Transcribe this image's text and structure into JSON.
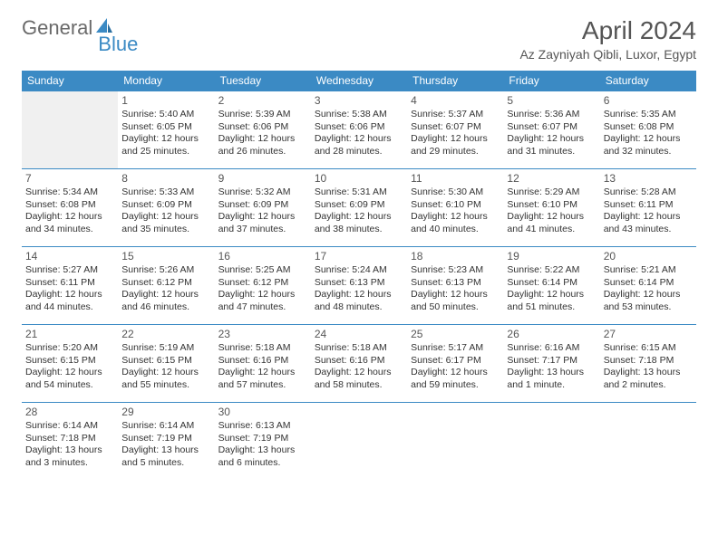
{
  "brand": {
    "part1": "General",
    "part2": "Blue"
  },
  "title": "April 2024",
  "location": "Az Zayniyah Qibli, Luxor, Egypt",
  "colors": {
    "accent": "#3b8ac4",
    "text": "#333333",
    "muted": "#6a6a6a",
    "bg": "#ffffff",
    "empty": "#f0f0f0"
  },
  "day_headers": [
    "Sunday",
    "Monday",
    "Tuesday",
    "Wednesday",
    "Thursday",
    "Friday",
    "Saturday"
  ],
  "weeks": [
    [
      {
        "day": "",
        "lines": [],
        "empty": true
      },
      {
        "day": "1",
        "lines": [
          "Sunrise: 5:40 AM",
          "Sunset: 6:05 PM",
          "Daylight: 12 hours",
          "and 25 minutes."
        ]
      },
      {
        "day": "2",
        "lines": [
          "Sunrise: 5:39 AM",
          "Sunset: 6:06 PM",
          "Daylight: 12 hours",
          "and 26 minutes."
        ]
      },
      {
        "day": "3",
        "lines": [
          "Sunrise: 5:38 AM",
          "Sunset: 6:06 PM",
          "Daylight: 12 hours",
          "and 28 minutes."
        ]
      },
      {
        "day": "4",
        "lines": [
          "Sunrise: 5:37 AM",
          "Sunset: 6:07 PM",
          "Daylight: 12 hours",
          "and 29 minutes."
        ]
      },
      {
        "day": "5",
        "lines": [
          "Sunrise: 5:36 AM",
          "Sunset: 6:07 PM",
          "Daylight: 12 hours",
          "and 31 minutes."
        ]
      },
      {
        "day": "6",
        "lines": [
          "Sunrise: 5:35 AM",
          "Sunset: 6:08 PM",
          "Daylight: 12 hours",
          "and 32 minutes."
        ]
      }
    ],
    [
      {
        "day": "7",
        "lines": [
          "Sunrise: 5:34 AM",
          "Sunset: 6:08 PM",
          "Daylight: 12 hours",
          "and 34 minutes."
        ]
      },
      {
        "day": "8",
        "lines": [
          "Sunrise: 5:33 AM",
          "Sunset: 6:09 PM",
          "Daylight: 12 hours",
          "and 35 minutes."
        ]
      },
      {
        "day": "9",
        "lines": [
          "Sunrise: 5:32 AM",
          "Sunset: 6:09 PM",
          "Daylight: 12 hours",
          "and 37 minutes."
        ]
      },
      {
        "day": "10",
        "lines": [
          "Sunrise: 5:31 AM",
          "Sunset: 6:09 PM",
          "Daylight: 12 hours",
          "and 38 minutes."
        ]
      },
      {
        "day": "11",
        "lines": [
          "Sunrise: 5:30 AM",
          "Sunset: 6:10 PM",
          "Daylight: 12 hours",
          "and 40 minutes."
        ]
      },
      {
        "day": "12",
        "lines": [
          "Sunrise: 5:29 AM",
          "Sunset: 6:10 PM",
          "Daylight: 12 hours",
          "and 41 minutes."
        ]
      },
      {
        "day": "13",
        "lines": [
          "Sunrise: 5:28 AM",
          "Sunset: 6:11 PM",
          "Daylight: 12 hours",
          "and 43 minutes."
        ]
      }
    ],
    [
      {
        "day": "14",
        "lines": [
          "Sunrise: 5:27 AM",
          "Sunset: 6:11 PM",
          "Daylight: 12 hours",
          "and 44 minutes."
        ]
      },
      {
        "day": "15",
        "lines": [
          "Sunrise: 5:26 AM",
          "Sunset: 6:12 PM",
          "Daylight: 12 hours",
          "and 46 minutes."
        ]
      },
      {
        "day": "16",
        "lines": [
          "Sunrise: 5:25 AM",
          "Sunset: 6:12 PM",
          "Daylight: 12 hours",
          "and 47 minutes."
        ]
      },
      {
        "day": "17",
        "lines": [
          "Sunrise: 5:24 AM",
          "Sunset: 6:13 PM",
          "Daylight: 12 hours",
          "and 48 minutes."
        ]
      },
      {
        "day": "18",
        "lines": [
          "Sunrise: 5:23 AM",
          "Sunset: 6:13 PM",
          "Daylight: 12 hours",
          "and 50 minutes."
        ]
      },
      {
        "day": "19",
        "lines": [
          "Sunrise: 5:22 AM",
          "Sunset: 6:14 PM",
          "Daylight: 12 hours",
          "and 51 minutes."
        ]
      },
      {
        "day": "20",
        "lines": [
          "Sunrise: 5:21 AM",
          "Sunset: 6:14 PM",
          "Daylight: 12 hours",
          "and 53 minutes."
        ]
      }
    ],
    [
      {
        "day": "21",
        "lines": [
          "Sunrise: 5:20 AM",
          "Sunset: 6:15 PM",
          "Daylight: 12 hours",
          "and 54 minutes."
        ]
      },
      {
        "day": "22",
        "lines": [
          "Sunrise: 5:19 AM",
          "Sunset: 6:15 PM",
          "Daylight: 12 hours",
          "and 55 minutes."
        ]
      },
      {
        "day": "23",
        "lines": [
          "Sunrise: 5:18 AM",
          "Sunset: 6:16 PM",
          "Daylight: 12 hours",
          "and 57 minutes."
        ]
      },
      {
        "day": "24",
        "lines": [
          "Sunrise: 5:18 AM",
          "Sunset: 6:16 PM",
          "Daylight: 12 hours",
          "and 58 minutes."
        ]
      },
      {
        "day": "25",
        "lines": [
          "Sunrise: 5:17 AM",
          "Sunset: 6:17 PM",
          "Daylight: 12 hours",
          "and 59 minutes."
        ]
      },
      {
        "day": "26",
        "lines": [
          "Sunrise: 6:16 AM",
          "Sunset: 7:17 PM",
          "Daylight: 13 hours",
          "and 1 minute."
        ]
      },
      {
        "day": "27",
        "lines": [
          "Sunrise: 6:15 AM",
          "Sunset: 7:18 PM",
          "Daylight: 13 hours",
          "and 2 minutes."
        ]
      }
    ],
    [
      {
        "day": "28",
        "lines": [
          "Sunrise: 6:14 AM",
          "Sunset: 7:18 PM",
          "Daylight: 13 hours",
          "and 3 minutes."
        ]
      },
      {
        "day": "29",
        "lines": [
          "Sunrise: 6:14 AM",
          "Sunset: 7:19 PM",
          "Daylight: 13 hours",
          "and 5 minutes."
        ]
      },
      {
        "day": "30",
        "lines": [
          "Sunrise: 6:13 AM",
          "Sunset: 7:19 PM",
          "Daylight: 13 hours",
          "and 6 minutes."
        ]
      },
      {
        "day": "",
        "lines": [],
        "empty": false
      },
      {
        "day": "",
        "lines": [],
        "empty": false
      },
      {
        "day": "",
        "lines": [],
        "empty": false
      },
      {
        "day": "",
        "lines": [],
        "empty": false
      }
    ]
  ]
}
